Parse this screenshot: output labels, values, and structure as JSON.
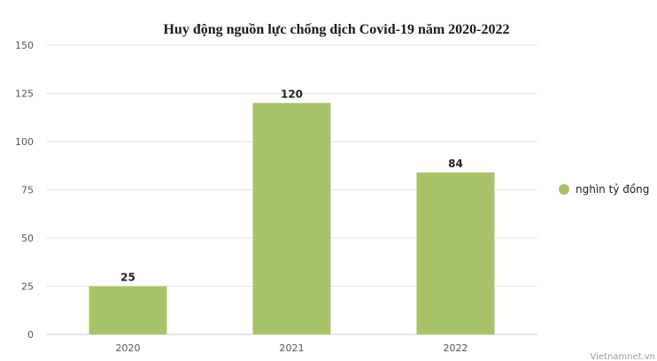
{
  "chart_data": {
    "type": "bar",
    "title": "Huy động nguồn lực chống dịch Covid-19 năm 2020-2022",
    "categories": [
      "2020",
      "2021",
      "2022"
    ],
    "series": [
      {
        "name": "nghìn tỷ đồng",
        "values": [
          25,
          120,
          84
        ],
        "color": "#a8c26a"
      }
    ],
    "data_labels": [
      "25",
      "120",
      "84"
    ],
    "y_ticks": [
      "0",
      "25",
      "50",
      "75",
      "100",
      "125",
      "150"
    ],
    "ylim": [
      0,
      150
    ],
    "grid": true,
    "legend_position": "right"
  },
  "credit": "Vietnamnet.vn"
}
